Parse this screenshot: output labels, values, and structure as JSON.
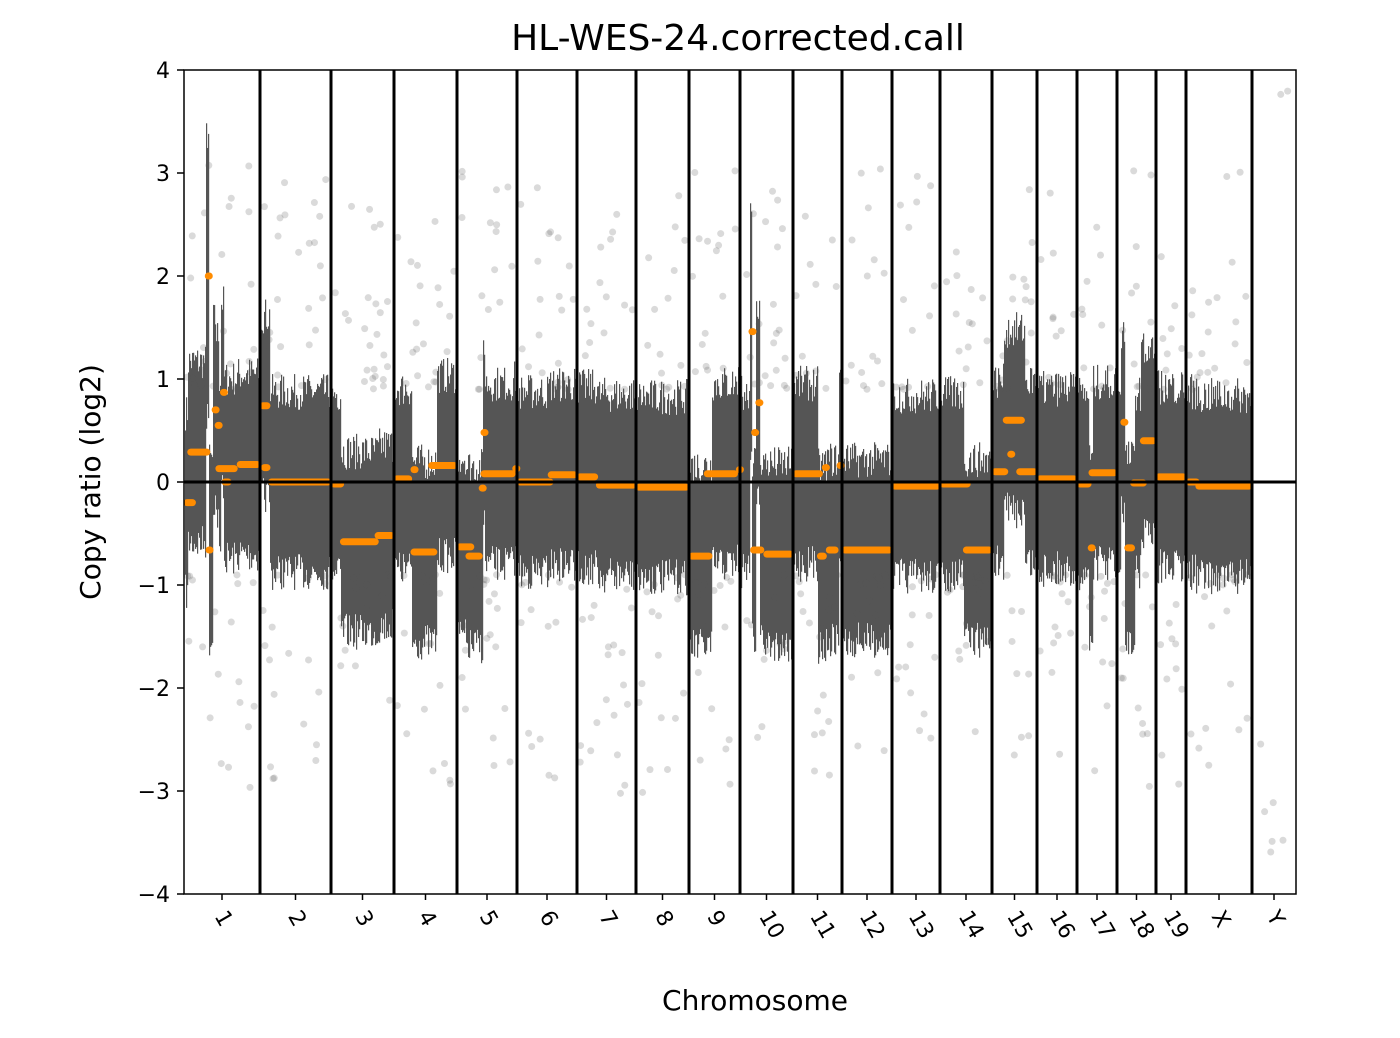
{
  "chart_data": {
    "type": "scatter",
    "title": "HL-WES-24.corrected.call",
    "xlabel": "Chromosome",
    "ylabel": "Copy ratio (log2)",
    "ylim": [
      -4,
      4
    ],
    "yticks": [
      -4,
      -3,
      -2,
      -1,
      0,
      1,
      2,
      3,
      4
    ],
    "ytick_labels": [
      "−4",
      "−3",
      "−2",
      "−1",
      "0",
      "1",
      "2",
      "3",
      "4"
    ],
    "grid": false,
    "colors": {
      "points": "#555555",
      "segments": "#ff8c00",
      "lines": "#000000"
    },
    "chromosomes": [
      {
        "label": "1",
        "segments": [
          [
            0,
            0.15,
            -0.2
          ],
          [
            0.05,
            0.34,
            0.29
          ],
          [
            0.28,
            0.32,
            2.0
          ],
          [
            0.29,
            0.37,
            -0.66
          ],
          [
            0.37,
            0.41,
            0.7
          ],
          [
            0.41,
            0.45,
            0.55
          ],
          [
            0.48,
            0.52,
            0.87
          ],
          [
            0.42,
            0.7,
            0.13
          ],
          [
            0.5,
            0.62,
            0.0
          ],
          [
            0.7,
            1,
            0.17
          ]
        ]
      },
      {
        "label": "2",
        "segments": [
          [
            0,
            0.14,
            0.74
          ],
          [
            0.02,
            0.14,
            0.14
          ],
          [
            0.12,
            1,
            0.0
          ]
        ]
      },
      {
        "label": "3",
        "segments": [
          [
            0,
            0.2,
            -0.02
          ],
          [
            0.15,
            0.75,
            -0.58
          ],
          [
            0.7,
            1,
            -0.52
          ]
        ]
      },
      {
        "label": "4",
        "segments": [
          [
            0,
            0.28,
            0.03
          ],
          [
            0.27,
            0.33,
            0.12
          ],
          [
            0.27,
            0.68,
            -0.68
          ],
          [
            0.55,
            1,
            0.16
          ]
        ]
      },
      {
        "label": "5",
        "segments": [
          [
            0,
            0.28,
            -0.63
          ],
          [
            0.15,
            0.42,
            -0.72
          ],
          [
            0.37,
            0.42,
            -0.06
          ],
          [
            0.4,
            0.45,
            0.48
          ],
          [
            0.4,
            0.97,
            0.08
          ],
          [
            0.93,
            1,
            0.13
          ]
        ]
      },
      {
        "label": "6",
        "segments": [
          [
            0,
            0.6,
            0.0
          ],
          [
            0.52,
            1,
            0.07
          ]
        ]
      },
      {
        "label": "7",
        "segments": [
          [
            0,
            0.35,
            0.05
          ],
          [
            0.33,
            1,
            -0.03
          ]
        ]
      },
      {
        "label": "8",
        "segments": [
          [
            0,
            1,
            -0.05
          ]
        ]
      },
      {
        "label": "9",
        "segments": [
          [
            0,
            0.45,
            -0.72
          ],
          [
            0.3,
            0.95,
            0.08
          ],
          [
            0.93,
            1,
            0.12
          ]
        ]
      },
      {
        "label": "10",
        "segments": [
          [
            0.17,
            0.22,
            1.46
          ],
          [
            0.22,
            0.3,
            0.48
          ],
          [
            0.3,
            0.36,
            0.77
          ],
          [
            0.2,
            0.45,
            -0.66
          ],
          [
            0.45,
            1,
            -0.7
          ]
        ]
      },
      {
        "label": "11",
        "segments": [
          [
            0,
            0.6,
            0.08
          ],
          [
            0.6,
            0.7,
            0.14
          ],
          [
            0.5,
            0.68,
            -0.72
          ],
          [
            0.68,
            0.92,
            -0.66
          ],
          [
            0.9,
            1,
            0.16
          ]
        ]
      },
      {
        "label": "12",
        "segments": [
          [
            0,
            1,
            -0.66
          ]
        ]
      },
      {
        "label": "13",
        "segments": [
          [
            0,
            1,
            -0.04
          ]
        ]
      },
      {
        "label": "14",
        "segments": [
          [
            0,
            0.58,
            -0.02
          ],
          [
            0.45,
            1,
            -0.66
          ]
        ]
      },
      {
        "label": "15",
        "segments": [
          [
            0,
            0.35,
            0.1
          ],
          [
            0.25,
            0.72,
            0.6
          ],
          [
            0.35,
            0.45,
            0.27
          ],
          [
            0.55,
            1,
            0.1
          ]
        ]
      },
      {
        "label": "16",
        "segments": [
          [
            0,
            1,
            0.03
          ]
        ]
      },
      {
        "label": "17",
        "segments": [
          [
            0,
            0.35,
            -0.02
          ],
          [
            0.28,
            0.38,
            -0.64
          ],
          [
            0.3,
            1,
            0.09
          ]
        ]
      },
      {
        "label": "18",
        "segments": [
          [
            0.1,
            0.25,
            0.58
          ],
          [
            0.2,
            0.45,
            -0.64
          ],
          [
            0.35,
            0.75,
            -0.01
          ],
          [
            0.6,
            1,
            0.4
          ]
        ]
      },
      {
        "label": "19",
        "segments": [
          [
            0,
            1,
            0.05
          ]
        ]
      },
      {
        "label": "X",
        "segments": [
          [
            0,
            0.2,
            0.0
          ],
          [
            0.15,
            1,
            -0.04
          ]
        ]
      },
      {
        "label": "Y",
        "segments": []
      }
    ]
  }
}
